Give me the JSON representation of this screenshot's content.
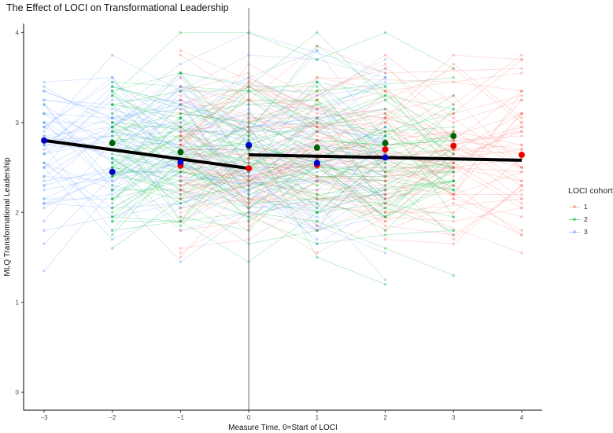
{
  "chart_data": {
    "type": "line",
    "title": "The Effect of LOCI on Transformational Leadership",
    "xlabel": "Measure Time, 0=Start of LOCI",
    "ylabel": "MLQ Transformational Leadership",
    "xlim": [
      -3.3,
      4.3
    ],
    "ylim": [
      -0.2,
      4.1
    ],
    "x_ticks": [
      -3,
      -2,
      -1,
      0,
      1,
      2,
      3,
      4
    ],
    "x_tick_labels": [
      "−3",
      "−2",
      "−1",
      "0",
      "1",
      "2",
      "3",
      "4"
    ],
    "y_ticks": [
      0,
      1,
      2,
      3,
      4
    ],
    "y_tick_labels": [
      "0",
      "1",
      "2",
      "3",
      "4"
    ],
    "vertical_reference_x": 0,
    "grid": false,
    "legend": {
      "title": "LOCI cohort",
      "position": "right",
      "entries": [
        {
          "label": "1",
          "color": "#F8766D"
        },
        {
          "label": "2",
          "color": "#00BA38"
        },
        {
          "label": "3",
          "color": "#619CFF"
        }
      ]
    },
    "cohort_colors": {
      "1": "#F8766D",
      "2": "#00BA38",
      "3": "#619CFF"
    },
    "cohort_mean_colors": {
      "1": "#EE0000",
      "2": "#006400",
      "3": "#0000CD"
    },
    "individual_trajectories": [
      {
        "cohort": "3",
        "x_range": [
          -3,
          2
        ],
        "count": 60
      },
      {
        "cohort": "2",
        "x_range": [
          -2,
          3
        ],
        "count": 60
      },
      {
        "cohort": "1",
        "x_range": [
          -1,
          4
        ],
        "count": 60
      }
    ],
    "cohort_means": [
      {
        "cohort": "1",
        "x": [
          -1,
          0,
          1,
          2,
          3,
          4
        ],
        "y": [
          2.52,
          2.49,
          2.53,
          2.7,
          2.74,
          2.64
        ]
      },
      {
        "cohort": "2",
        "x": [
          -2,
          -1,
          0,
          1,
          2,
          3
        ],
        "y": [
          2.77,
          2.67,
          2.74,
          2.72,
          2.77,
          2.85
        ]
      },
      {
        "cohort": "3",
        "x": [
          -3,
          -2,
          -1,
          0,
          1,
          2
        ],
        "y": [
          2.8,
          2.45,
          2.56,
          2.75,
          2.55,
          2.61
        ]
      }
    ],
    "fitted_segments": [
      {
        "name": "pre",
        "x": [
          -3,
          0
        ],
        "y": [
          2.8,
          2.49
        ]
      },
      {
        "name": "post",
        "x": [
          0,
          4
        ],
        "y": [
          2.64,
          2.58
        ]
      }
    ]
  }
}
